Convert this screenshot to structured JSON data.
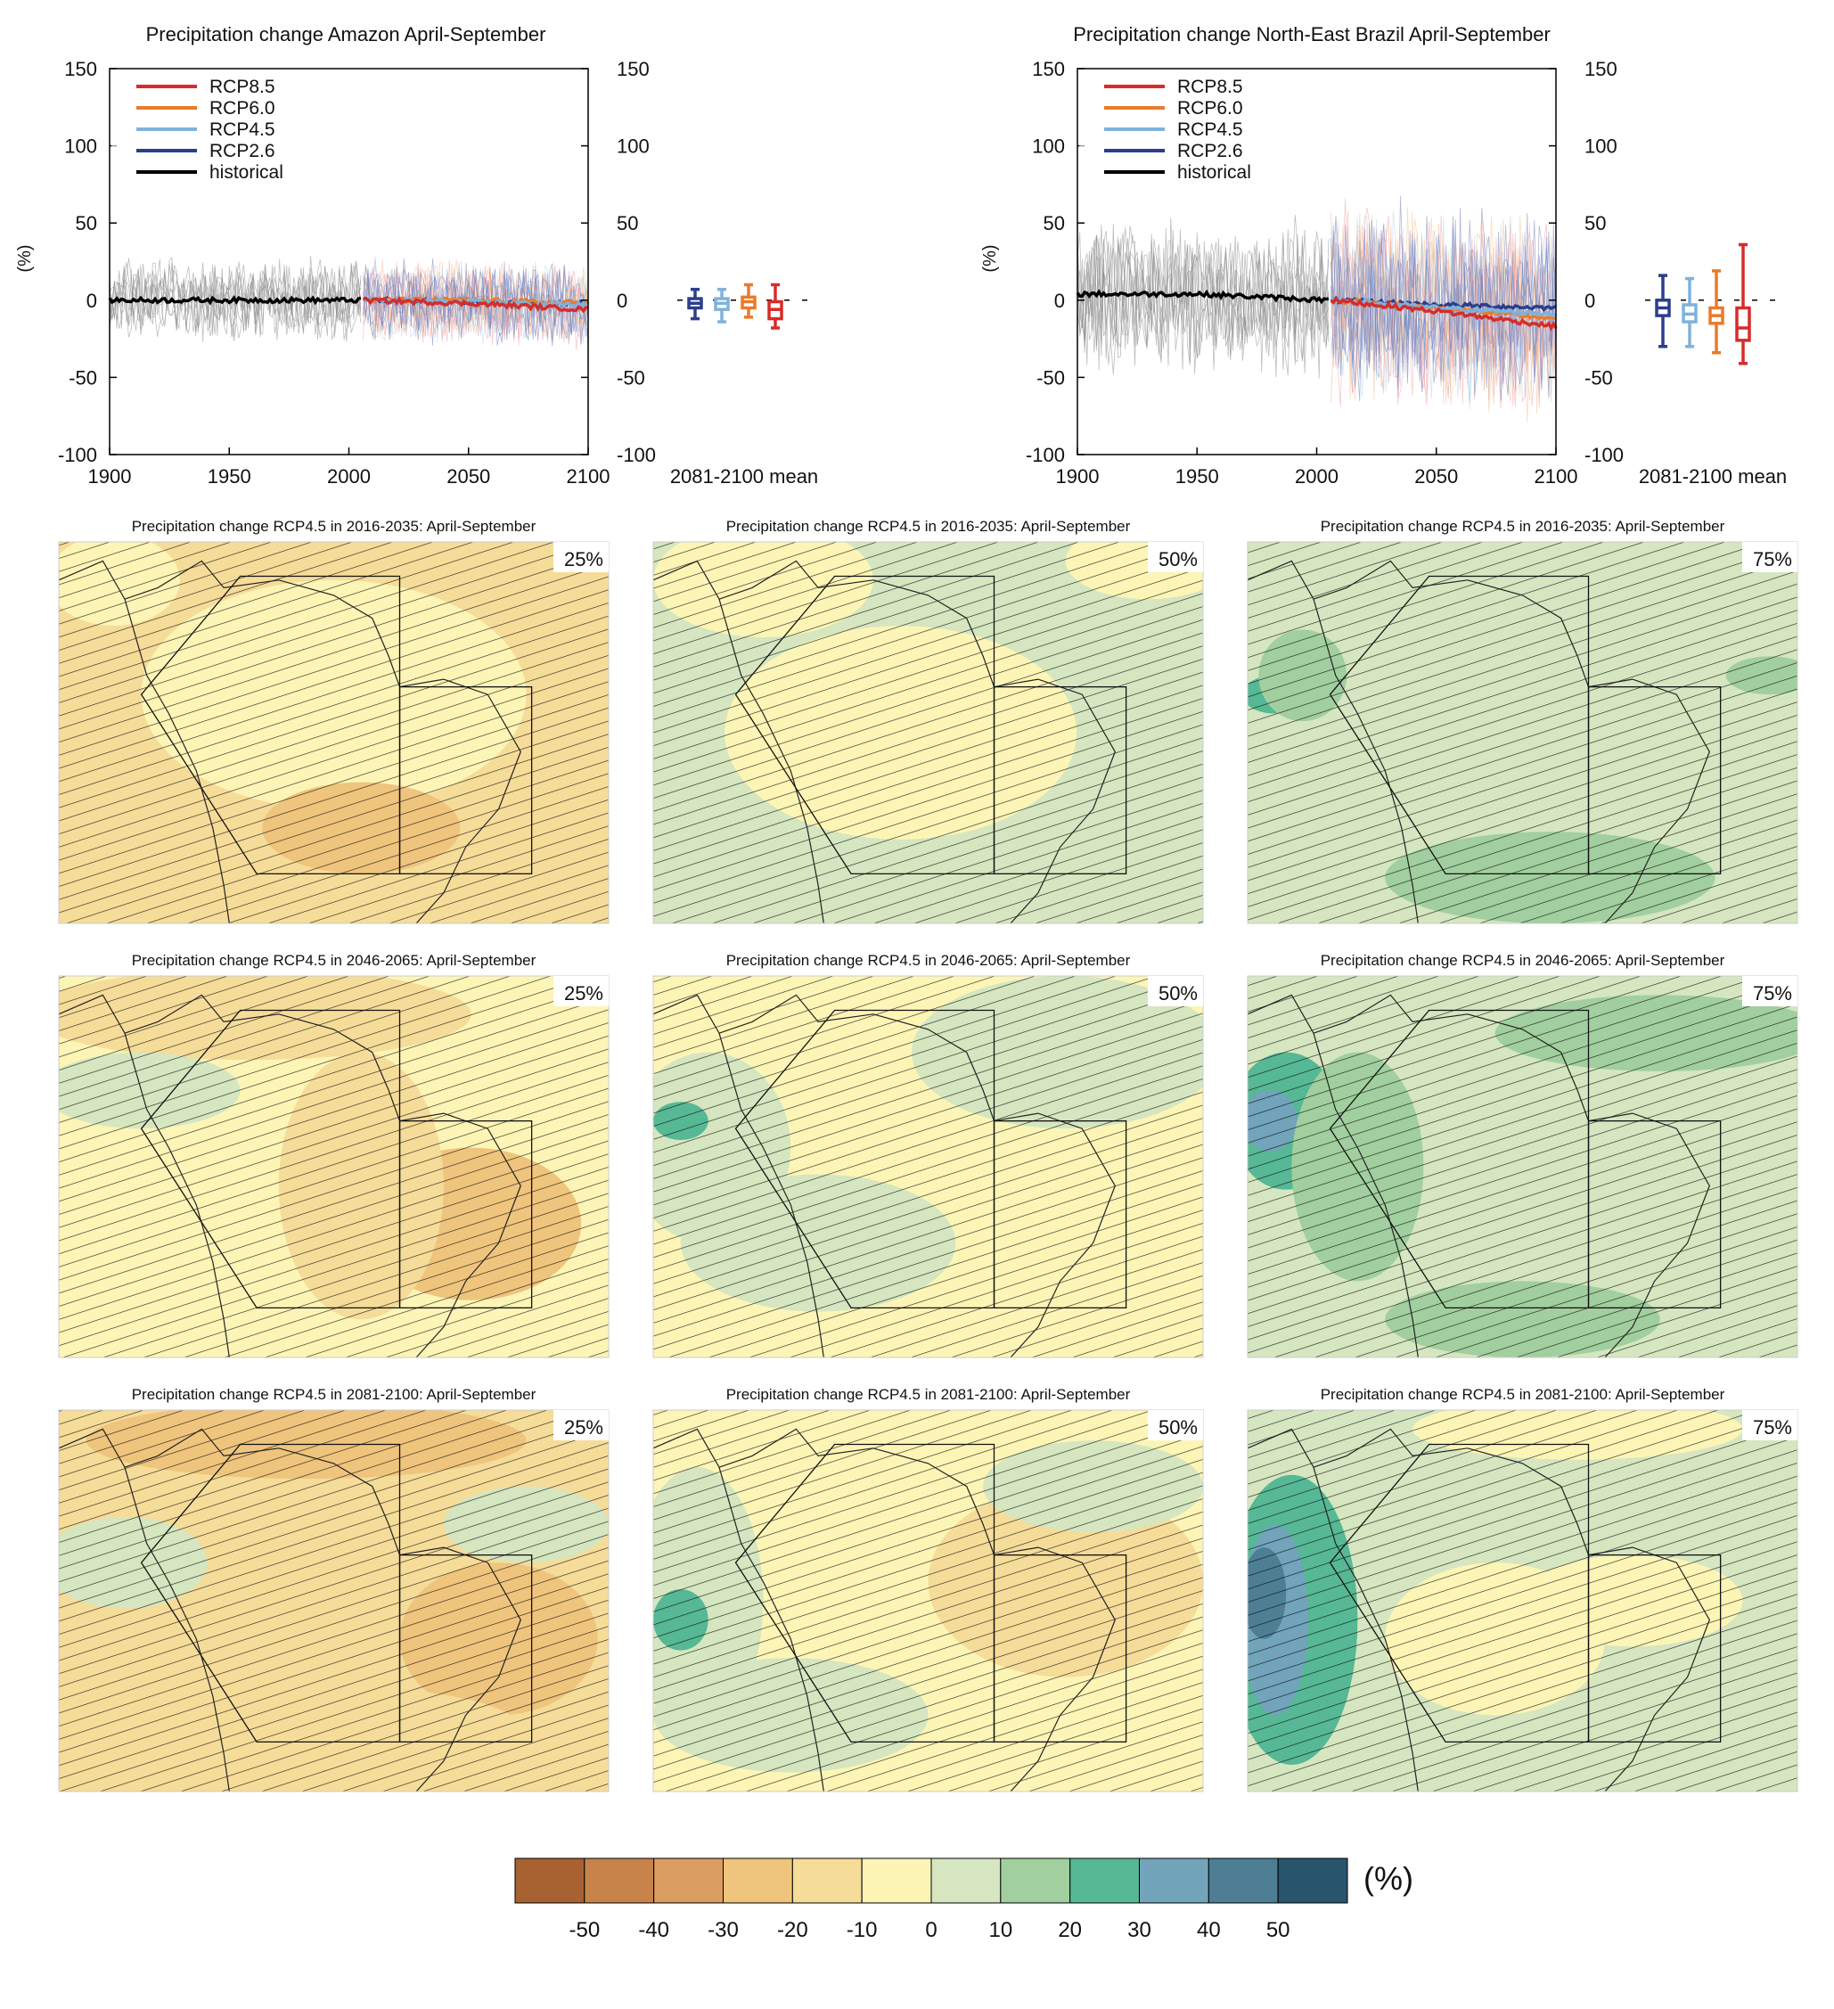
{
  "timeseries_panels": [
    {
      "title": "Precipitation change Amazon April-September",
      "ylabel": "(%)",
      "box_label": "2081-2100 mean"
    },
    {
      "title": "Precipitation change North-East Brazil April-September",
      "ylabel": "(%)",
      "box_label": "2081-2100 mean"
    }
  ],
  "legend": [
    {
      "label": "RCP8.5",
      "color": "#d62d2a"
    },
    {
      "label": "RCP6.0",
      "color": "#e87b2c"
    },
    {
      "label": "RCP4.5",
      "color": "#7fb2db"
    },
    {
      "label": "RCP2.6",
      "color": "#2b3e8c"
    },
    {
      "label": "historical",
      "color": "#000000"
    }
  ],
  "map_titles": [
    "Precipitation change RCP4.5 in 2016-2035: April-September",
    "Precipitation change RCP4.5 in 2046-2065: April-September",
    "Precipitation change RCP4.5 in 2081-2100: April-September"
  ],
  "map_percentiles": [
    "25%",
    "50%",
    "75%"
  ],
  "colorbar": {
    "unit": "(%)",
    "ticks": [
      "-50",
      "-40",
      "-30",
      "-20",
      "-10",
      "0",
      "10",
      "20",
      "30",
      "40",
      "50"
    ],
    "colors": [
      "#a86130",
      "#c7834a",
      "#db9d62",
      "#efc47d",
      "#f6dc99",
      "#fdf5b6",
      "#d5e6c0",
      "#a1cf9f",
      "#56b894",
      "#72a4bb",
      "#4d7e94",
      "#29556e"
    ]
  },
  "chart_data": [
    {
      "type": "line",
      "title": "Precipitation change Amazon April-September",
      "ylabel": "(%)",
      "xlim": [
        1900,
        2100
      ],
      "ylim": [
        -100,
        150
      ],
      "x_ticks": [
        1900,
        1950,
        2000,
        2050,
        2100
      ],
      "y_ticks": [
        -100,
        -50,
        0,
        50,
        100,
        150
      ],
      "series": [
        {
          "name": "historical",
          "x": [
            1900,
            1950,
            2005
          ],
          "y": [
            0,
            0,
            0
          ]
        },
        {
          "name": "RCP2.6",
          "x": [
            2006,
            2050,
            2100
          ],
          "y": [
            0,
            -1,
            -2
          ]
        },
        {
          "name": "RCP4.5",
          "x": [
            2006,
            2050,
            2100
          ],
          "y": [
            0,
            -1,
            -3
          ]
        },
        {
          "name": "RCP6.0",
          "x": [
            2006,
            2050,
            2100
          ],
          "y": [
            0,
            0,
            -2
          ]
        },
        {
          "name": "RCP8.5",
          "x": [
            2006,
            2050,
            2100
          ],
          "y": [
            0,
            -2,
            -6
          ]
        }
      ],
      "spread": {
        "historical": 30,
        "scenario": 30
      },
      "boxes": [
        {
          "name": "RCP2.6",
          "min": -12,
          "q1": -5,
          "median": -2,
          "q3": 1,
          "max": 7
        },
        {
          "name": "RCP4.5",
          "min": -14,
          "q1": -6,
          "median": -2,
          "q3": 1,
          "max": 7
        },
        {
          "name": "RCP6.0",
          "min": -11,
          "q1": -5,
          "median": -1,
          "q3": 2,
          "max": 10
        },
        {
          "name": "RCP8.5",
          "min": -18,
          "q1": -12,
          "median": -6,
          "q3": -1,
          "max": 10
        }
      ]
    },
    {
      "type": "line",
      "title": "Precipitation change North-East Brazil April-September",
      "ylabel": "(%)",
      "xlim": [
        1900,
        2100
      ],
      "ylim": [
        -100,
        150
      ],
      "x_ticks": [
        1900,
        1950,
        2000,
        2050,
        2100
      ],
      "y_ticks": [
        -100,
        -50,
        0,
        50,
        100,
        150
      ],
      "series": [
        {
          "name": "historical",
          "x": [
            1900,
            1950,
            2005
          ],
          "y": [
            4,
            4,
            0
          ]
        },
        {
          "name": "RCP2.6",
          "x": [
            2006,
            2050,
            2100
          ],
          "y": [
            0,
            -3,
            -5
          ]
        },
        {
          "name": "RCP4.5",
          "x": [
            2006,
            2050,
            2100
          ],
          "y": [
            0,
            -5,
            -9
          ]
        },
        {
          "name": "RCP6.0",
          "x": [
            2006,
            2050,
            2100
          ],
          "y": [
            0,
            -5,
            -12
          ]
        },
        {
          "name": "RCP8.5",
          "x": [
            2006,
            2050,
            2100
          ],
          "y": [
            0,
            -7,
            -17
          ]
        }
      ],
      "spread": {
        "historical": 55,
        "scenario": 70
      },
      "boxes": [
        {
          "name": "RCP2.6",
          "min": -30,
          "q1": -10,
          "median": -5,
          "q3": 0,
          "max": 16
        },
        {
          "name": "RCP4.5",
          "min": -30,
          "q1": -14,
          "median": -9,
          "q3": -3,
          "max": 14
        },
        {
          "name": "RCP6.0",
          "min": -34,
          "q1": -15,
          "median": -10,
          "q3": -5,
          "max": 19
        },
        {
          "name": "RCP8.5",
          "min": -41,
          "q1": -26,
          "median": -18,
          "q3": -5,
          "max": 36
        }
      ]
    }
  ]
}
